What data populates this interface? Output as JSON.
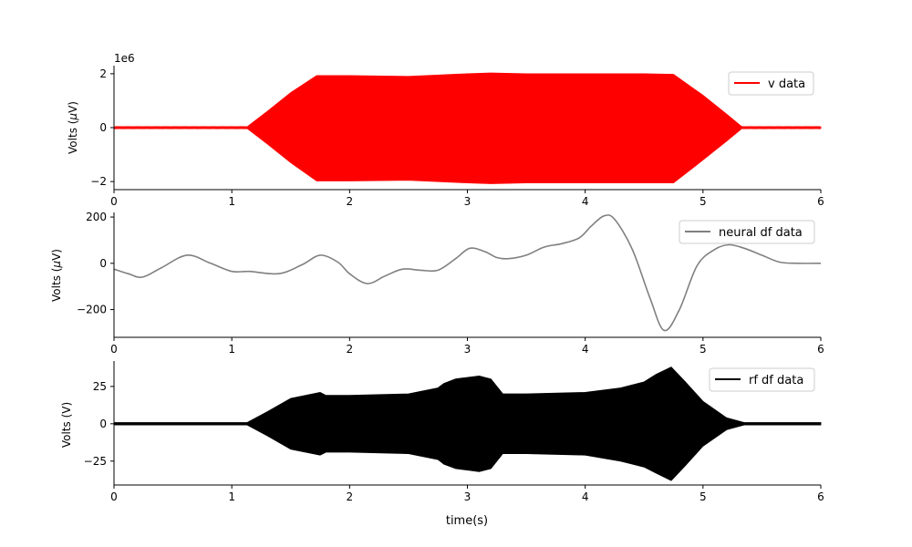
{
  "figure": {
    "xlabel": "time(s)"
  },
  "chart_data": [
    {
      "type": "line",
      "ylabel": "Volts (μV)",
      "ylabel_main": "Volts (",
      "ylabel_mu": "μ",
      "ylabel_tail": "V)",
      "offset_text": "1e6",
      "xlim": [
        0,
        6
      ],
      "ylim": [
        -2.3,
        2.3
      ],
      "x_ticks": [
        0,
        1,
        2,
        3,
        4,
        5,
        6
      ],
      "x_tick_labels": [
        "0",
        "1",
        "2",
        "3",
        "4",
        "5",
        "6"
      ],
      "y_ticks": [
        -2,
        0,
        2
      ],
      "y_tick_labels": [
        "−2",
        "0",
        "2"
      ],
      "legend_position": "upper right",
      "series": [
        {
          "name": "v data",
          "color": "#ff0000",
          "render": "filled-oscillation-envelope",
          "envelope": {
            "x": [
              0,
              1.13,
              1.3,
              1.5,
              1.72,
              2.0,
              2.5,
              3.0,
              3.2,
              3.5,
              4.0,
              4.5,
              4.75,
              5.0,
              5.2,
              5.33,
              6.0
            ],
            "upper": [
              0.03,
              0.03,
              0.6,
              1.3,
              1.93,
              1.93,
              1.9,
              2.0,
              2.03,
              2.0,
              2.0,
              2.0,
              1.98,
              1.2,
              0.5,
              0.03,
              0.03
            ],
            "lower": [
              -0.03,
              -0.03,
              -0.6,
              -1.3,
              -1.98,
              -1.98,
              -1.95,
              -2.05,
              -2.08,
              -2.05,
              -2.05,
              -2.05,
              -2.05,
              -1.2,
              -0.5,
              -0.03,
              -0.03
            ]
          }
        }
      ]
    },
    {
      "type": "line",
      "ylabel": "Volts (μV)",
      "ylabel_main": "Volts (",
      "ylabel_mu": "μ",
      "ylabel_tail": "V)",
      "xlim": [
        0,
        6
      ],
      "ylim": [
        -320,
        220
      ],
      "x_ticks": [
        0,
        1,
        2,
        3,
        4,
        5,
        6
      ],
      "x_tick_labels": [
        "0",
        "1",
        "2",
        "3",
        "4",
        "5",
        "6"
      ],
      "y_ticks": [
        -200,
        0,
        200
      ],
      "y_tick_labels": [
        "−200",
        "0",
        "200"
      ],
      "legend_position": "upper right",
      "series": [
        {
          "name": "neural df data",
          "color": "#808080",
          "render": "line",
          "x": [
            0,
            0.12,
            0.24,
            0.4,
            0.62,
            0.82,
            1.0,
            1.15,
            1.4,
            1.6,
            1.75,
            1.9,
            2.0,
            2.15,
            2.3,
            2.45,
            2.6,
            2.75,
            2.9,
            3.02,
            3.15,
            3.25,
            3.35,
            3.5,
            3.65,
            3.8,
            3.95,
            4.05,
            4.16,
            4.25,
            4.4,
            4.55,
            4.67,
            4.8,
            4.95,
            5.1,
            5.22,
            5.35,
            5.5,
            5.65,
            5.8,
            6.0
          ],
          "y": [
            -25,
            -45,
            -60,
            -20,
            35,
            0,
            -35,
            -35,
            -45,
            -5,
            35,
            5,
            -45,
            -88,
            -55,
            -25,
            -30,
            -30,
            20,
            65,
            50,
            25,
            20,
            35,
            70,
            85,
            110,
            160,
            205,
            190,
            60,
            -150,
            -290,
            -200,
            -10,
            60,
            80,
            65,
            35,
            5,
            0,
            0
          ]
        }
      ]
    },
    {
      "type": "line",
      "ylabel": "Volts (V)",
      "xlabel": "time(s)",
      "xlim": [
        0,
        6
      ],
      "ylim": [
        -41,
        42
      ],
      "x_ticks": [
        0,
        1,
        2,
        3,
        4,
        5,
        6
      ],
      "x_tick_labels": [
        "0",
        "1",
        "2",
        "3",
        "4",
        "5",
        "6"
      ],
      "y_ticks": [
        -25,
        0,
        25
      ],
      "y_tick_labels": [
        "−25",
        "0",
        "25"
      ],
      "legend_position": "upper right",
      "series": [
        {
          "name": "rf df data",
          "color": "#000000",
          "render": "filled-oscillation-envelope",
          "envelope": {
            "x": [
              0,
              1.13,
              1.3,
              1.5,
              1.75,
              1.8,
              2.0,
              2.5,
              2.75,
              2.8,
              2.9,
              3.0,
              3.1,
              3.2,
              3.3,
              3.5,
              4.0,
              4.3,
              4.5,
              4.6,
              4.73,
              4.85,
              5.0,
              5.2,
              5.35,
              6.0
            ],
            "upper": [
              0.8,
              0.8,
              8,
              17,
              21,
              19,
              19,
              20,
              24,
              27,
              30,
              31,
              32,
              30,
              20,
              20,
              21,
              24,
              28,
              33,
              38,
              28,
              15,
              4,
              0.8,
              0.8
            ],
            "lower": [
              -0.8,
              -0.8,
              -8,
              -17,
              -21,
              -19,
              -19,
              -20,
              -24,
              -27,
              -30,
              -31,
              -32,
              -30,
              -20,
              -20,
              -21,
              -25,
              -29,
              -33,
              -38,
              -28,
              -15,
              -4,
              -0.8,
              -0.8
            ]
          }
        }
      ]
    }
  ]
}
